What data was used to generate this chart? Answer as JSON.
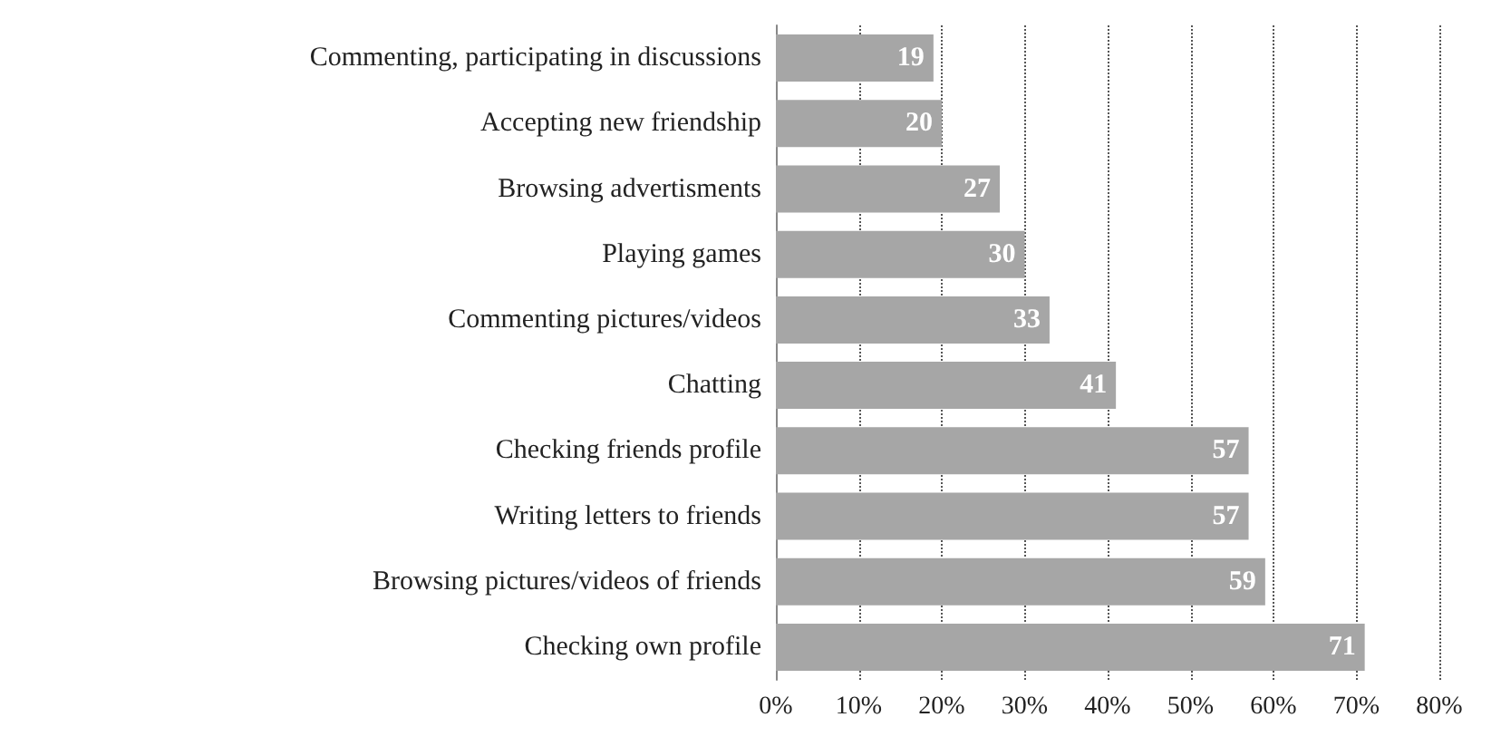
{
  "chart_data": {
    "type": "bar",
    "orientation": "horizontal",
    "categories": [
      "Commenting, participating in discussions",
      "Accepting new friendship",
      "Browsing advertisments",
      "Playing games",
      "Commenting pictures/videos",
      "Chatting",
      "Checking friends profile",
      "Writing letters to friends",
      "Browsing pictures/videos of friends",
      "Checking own profile"
    ],
    "values": [
      19,
      20,
      27,
      30,
      33,
      41,
      57,
      57,
      59,
      71
    ],
    "color": "#a6a6a6",
    "xlim": [
      0,
      80
    ],
    "xticks": [
      {
        "value": 0,
        "label": "0%"
      },
      {
        "value": 10,
        "label": "10%"
      },
      {
        "value": 20,
        "label": "20%"
      },
      {
        "value": 30,
        "label": "30%"
      },
      {
        "value": 40,
        "label": "40%"
      },
      {
        "value": 50,
        "label": "50%"
      },
      {
        "value": 60,
        "label": "60%"
      },
      {
        "value": 70,
        "label": "70%"
      },
      {
        "value": 80,
        "label": "80%"
      }
    ],
    "grid": "x",
    "data_labels": true
  }
}
